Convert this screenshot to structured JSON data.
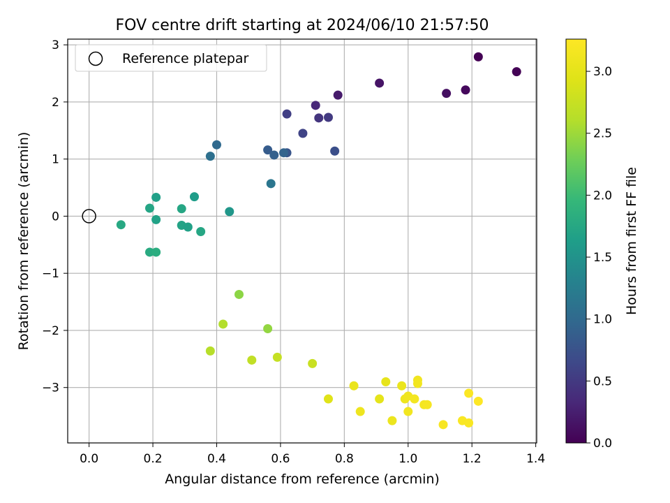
{
  "chart_data": {
    "type": "scatter",
    "title": "FOV centre drift starting at 2024/06/10 21:57:50",
    "xlabel": "Angular distance from reference (arcmin)",
    "ylabel": "Rotation from reference (arcmin)",
    "xlim": [
      -0.067,
      1.403
    ],
    "ylim": [
      -3.97,
      3.1
    ],
    "xticks": [
      0.0,
      0.2,
      0.4,
      0.6,
      0.8,
      1.0,
      1.2,
      1.4
    ],
    "xtick_labels": [
      "0.0",
      "0.2",
      "0.4",
      "0.6",
      "0.8",
      "1.0",
      "1.2",
      "1.4"
    ],
    "yticks": [
      -3,
      -2,
      -1,
      0,
      1,
      2,
      3
    ],
    "ytick_labels": [
      "−3",
      "−2",
      "−1",
      "0",
      "1",
      "2",
      "3"
    ],
    "grid": true,
    "legend": {
      "position": "upper-left",
      "entries": [
        {
          "label": "Reference platepar",
          "marker": "open-circle"
        }
      ]
    },
    "reference_point": {
      "x": 0.0,
      "y": 0.0
    },
    "colorbar": {
      "label": "Hours from first FF file",
      "colormap": "viridis",
      "range": [
        0.0,
        3.26
      ],
      "ticks": [
        0.0,
        0.5,
        1.0,
        1.5,
        2.0,
        2.5,
        3.0
      ],
      "tick_labels": [
        "0.0",
        "0.5",
        "1.0",
        "1.5",
        "2.0",
        "2.5",
        "3.0"
      ]
    },
    "points": [
      {
        "x": 1.22,
        "y": 2.79,
        "c": 0.0
      },
      {
        "x": 1.34,
        "y": 2.53,
        "c": 0.02
      },
      {
        "x": 1.18,
        "y": 2.21,
        "c": 0.07
      },
      {
        "x": 1.12,
        "y": 2.15,
        "c": 0.12
      },
      {
        "x": 0.91,
        "y": 2.33,
        "c": 0.16
      },
      {
        "x": 0.78,
        "y": 2.12,
        "c": 0.22
      },
      {
        "x": 0.71,
        "y": 1.94,
        "c": 0.33
      },
      {
        "x": 0.72,
        "y": 1.72,
        "c": 0.45
      },
      {
        "x": 0.75,
        "y": 1.73,
        "c": 0.5
      },
      {
        "x": 0.62,
        "y": 1.79,
        "c": 0.55
      },
      {
        "x": 0.67,
        "y": 1.45,
        "c": 0.6
      },
      {
        "x": 0.77,
        "y": 1.14,
        "c": 0.72
      },
      {
        "x": 0.62,
        "y": 1.11,
        "c": 0.78
      },
      {
        "x": 0.56,
        "y": 1.16,
        "c": 0.85
      },
      {
        "x": 0.58,
        "y": 1.07,
        "c": 0.9
      },
      {
        "x": 0.61,
        "y": 1.11,
        "c": 0.94
      },
      {
        "x": 0.4,
        "y": 1.25,
        "c": 1.0
      },
      {
        "x": 0.38,
        "y": 1.05,
        "c": 1.08
      },
      {
        "x": 0.57,
        "y": 0.57,
        "c": 1.15
      },
      {
        "x": 0.44,
        "y": 0.08,
        "c": 1.55
      },
      {
        "x": 0.33,
        "y": 0.34,
        "c": 1.62
      },
      {
        "x": 0.21,
        "y": 0.33,
        "c": 1.66
      },
      {
        "x": 0.19,
        "y": 0.14,
        "c": 1.72
      },
      {
        "x": 0.29,
        "y": 0.13,
        "c": 1.74
      },
      {
        "x": 0.21,
        "y": -0.06,
        "c": 1.68
      },
      {
        "x": 0.29,
        "y": -0.16,
        "c": 1.7
      },
      {
        "x": 0.31,
        "y": -0.19,
        "c": 1.67
      },
      {
        "x": 0.35,
        "y": -0.27,
        "c": 1.74
      },
      {
        "x": 0.1,
        "y": -0.15,
        "c": 1.76
      },
      {
        "x": 0.19,
        "y": -0.63,
        "c": 1.79
      },
      {
        "x": 0.21,
        "y": -0.63,
        "c": 1.82
      },
      {
        "x": 0.47,
        "y": -1.37,
        "c": 2.42
      },
      {
        "x": 0.42,
        "y": -1.89,
        "c": 2.6
      },
      {
        "x": 0.56,
        "y": -1.97,
        "c": 2.45
      },
      {
        "x": 0.38,
        "y": -2.36,
        "c": 2.62
      },
      {
        "x": 0.51,
        "y": -2.52,
        "c": 2.7
      },
      {
        "x": 0.59,
        "y": -2.47,
        "c": 2.73
      },
      {
        "x": 0.7,
        "y": -2.58,
        "c": 2.76
      },
      {
        "x": 0.75,
        "y": -3.2,
        "c": 2.95
      },
      {
        "x": 0.83,
        "y": -2.97,
        "c": 3.05
      },
      {
        "x": 0.85,
        "y": -3.42,
        "c": 3.1
      },
      {
        "x": 0.91,
        "y": -3.2,
        "c": 3.0
      },
      {
        "x": 0.93,
        "y": -2.9,
        "c": 3.02
      },
      {
        "x": 0.95,
        "y": -3.58,
        "c": 3.08
      },
      {
        "x": 0.98,
        "y": -2.97,
        "c": 3.06
      },
      {
        "x": 0.99,
        "y": -3.2,
        "c": 3.1
      },
      {
        "x": 1.0,
        "y": -3.15,
        "c": 3.12
      },
      {
        "x": 1.0,
        "y": -3.42,
        "c": 3.14
      },
      {
        "x": 1.02,
        "y": -3.2,
        "c": 3.15
      },
      {
        "x": 1.03,
        "y": -2.87,
        "c": 3.13
      },
      {
        "x": 1.03,
        "y": -2.93,
        "c": 3.14
      },
      {
        "x": 1.05,
        "y": -3.3,
        "c": 3.16
      },
      {
        "x": 1.06,
        "y": -3.3,
        "c": 3.18
      },
      {
        "x": 1.11,
        "y": -3.65,
        "c": 3.2
      },
      {
        "x": 1.17,
        "y": -3.58,
        "c": 3.22
      },
      {
        "x": 1.19,
        "y": -3.62,
        "c": 3.22
      },
      {
        "x": 1.19,
        "y": -3.1,
        "c": 3.24
      },
      {
        "x": 1.22,
        "y": -3.24,
        "c": 3.26
      }
    ]
  }
}
